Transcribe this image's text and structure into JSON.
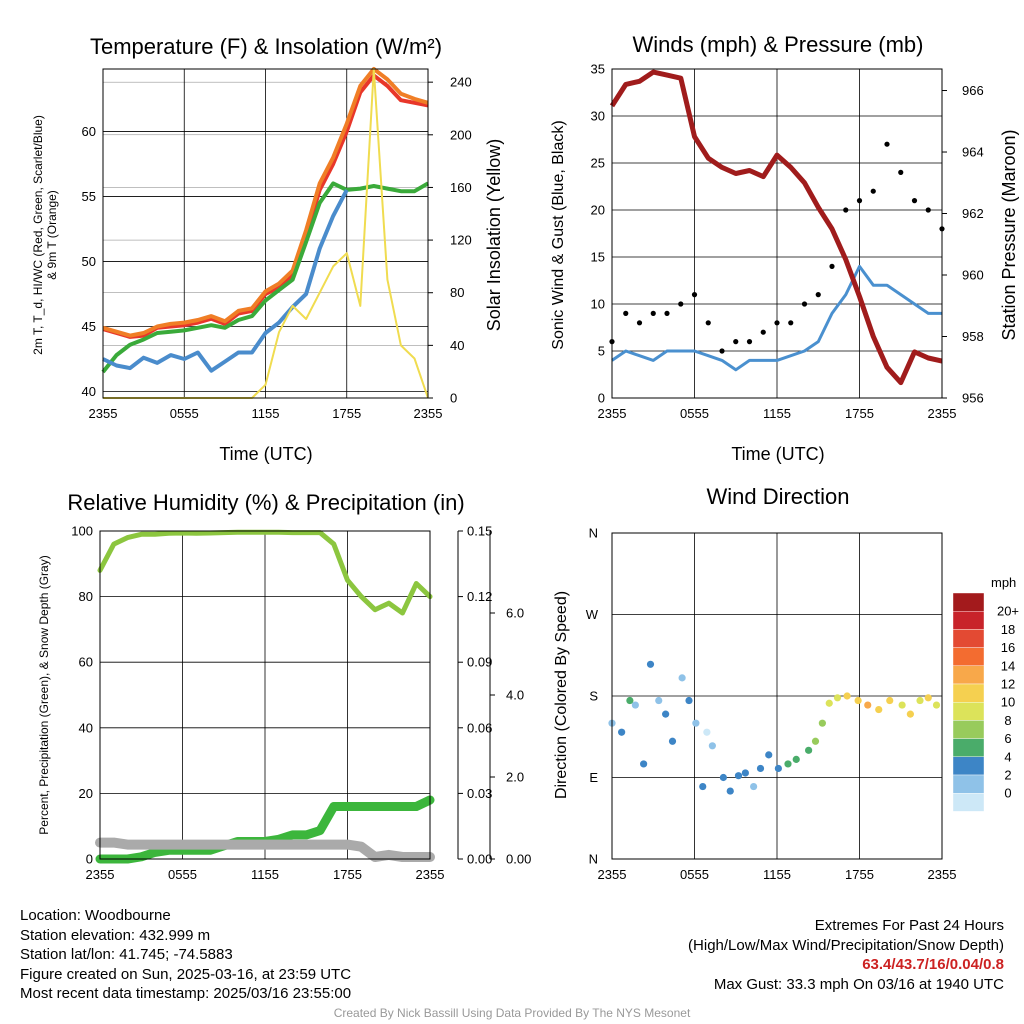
{
  "chart_data": [
    {
      "type": "line",
      "title": "Temperature (F) & Insolation (W/m²)",
      "xlabel": "Time (UTC)",
      "ylabel_lines": [
        "2m T, T_d, HI/WC (Red, Green, Scarlet/Blue)",
        "& 9m T (Orange)"
      ],
      "y2label": "Solar Insolation (Yellow)",
      "x_ticks": [
        "2355",
        "0555",
        "1155",
        "1755",
        "2355"
      ],
      "y_ticks": [
        40,
        45,
        50,
        55,
        60
      ],
      "ylim": [
        39.5,
        64.8
      ],
      "y2_ticks": [
        0,
        40,
        80,
        120,
        160,
        200,
        240
      ],
      "y2lim": [
        0,
        250
      ],
      "x_hours": [
        0,
        1,
        2,
        3,
        4,
        5,
        6,
        7,
        8,
        9,
        10,
        11,
        12,
        13,
        14,
        15,
        16,
        17,
        18,
        19,
        20,
        21,
        22,
        23,
        24
      ],
      "series": [
        {
          "role": "2m T",
          "color": "#e8372a",
          "values": [
            44.8,
            44.5,
            44.2,
            44.3,
            44.9,
            45.0,
            45.1,
            45.3,
            45.6,
            45.2,
            46.0,
            46.2,
            47.5,
            48.0,
            49.0,
            52.0,
            55.5,
            57.5,
            60.0,
            63.0,
            64.3,
            63.5,
            62.4,
            62.2,
            62.0
          ]
        },
        {
          "role": "9m T",
          "color": "#f07e26",
          "values": [
            44.9,
            44.6,
            44.3,
            44.5,
            45.0,
            45.2,
            45.3,
            45.5,
            45.8,
            45.4,
            46.2,
            46.4,
            47.7,
            48.3,
            49.3,
            52.4,
            56.0,
            58.0,
            60.6,
            63.5,
            64.8,
            64.0,
            62.9,
            62.5,
            62.2
          ]
        },
        {
          "role": "T_d",
          "color": "#3aaa3a",
          "values": [
            41.5,
            42.8,
            43.6,
            44.0,
            44.5,
            44.6,
            44.7,
            44.9,
            45.1,
            44.9,
            45.5,
            45.8,
            47.0,
            47.8,
            48.6,
            51.5,
            54.5,
            56.0,
            55.5,
            55.6,
            55.8,
            55.6,
            55.4,
            55.4,
            56.0
          ]
        },
        {
          "role": "HI/WC",
          "color": "#4a8ccc",
          "values": [
            42.5,
            42.0,
            41.8,
            42.6,
            42.2,
            42.8,
            42.5,
            43.0,
            41.6,
            42.3,
            43.0,
            43.0,
            44.5,
            45.3,
            46.5,
            47.5,
            51.0,
            53.5,
            55.5,
            null,
            null,
            null,
            null,
            null,
            null
          ]
        },
        {
          "role": "Solar Insolation",
          "axis": "right",
          "color": "#f0dc50",
          "values": [
            0,
            0,
            0,
            0,
            0,
            0,
            0,
            0,
            0,
            0,
            0,
            0,
            10,
            50,
            70,
            60,
            80,
            100,
            110,
            70,
            250,
            90,
            40,
            30,
            0
          ]
        }
      ]
    },
    {
      "type": "line",
      "title": "Winds (mph) & Pressure (mb)",
      "xlabel": "Time (UTC)",
      "ylabel": "Sonic Wind & Gust (Blue, Black)",
      "y2label": "Station Pressure (Maroon)",
      "x_ticks": [
        "2355",
        "0555",
        "1155",
        "1755",
        "2355"
      ],
      "y_ticks": [
        0,
        5,
        10,
        15,
        20,
        25,
        30,
        35
      ],
      "ylim": [
        0,
        35
      ],
      "y2_ticks": [
        956,
        958,
        960,
        962,
        964,
        966
      ],
      "y2lim": [
        956,
        966.7
      ],
      "x_hours": [
        0,
        1,
        2,
        3,
        4,
        5,
        6,
        7,
        8,
        9,
        10,
        11,
        12,
        13,
        14,
        15,
        16,
        17,
        18,
        19,
        20,
        21,
        22,
        23,
        24
      ],
      "series": [
        {
          "role": "Sonic Wind",
          "color": "#4a90cf",
          "values": [
            4,
            5,
            4.5,
            4,
            5,
            5,
            5,
            4.5,
            4,
            3,
            4,
            4,
            4,
            4.5,
            5,
            6,
            9,
            11,
            14,
            12,
            12,
            11,
            10,
            9,
            9
          ]
        },
        {
          "role": "Gust",
          "color": "#000000",
          "values": [
            6,
            9,
            8,
            9,
            9,
            10,
            11,
            8,
            5,
            6,
            6,
            7,
            8,
            8,
            10,
            11,
            14,
            20,
            21,
            22,
            27,
            24,
            21,
            20,
            18
          ]
        },
        {
          "role": "Station Pressure",
          "axis": "right",
          "color": "#a01c1c",
          "values": [
            965.5,
            966.2,
            966.3,
            966.6,
            966.5,
            966.4,
            964.5,
            963.8,
            963.5,
            963.3,
            963.4,
            963.2,
            963.9,
            963.5,
            963.0,
            962.2,
            961.5,
            960.5,
            959.3,
            958.0,
            957.0,
            956.5,
            957.5,
            957.3,
            957.2
          ]
        }
      ]
    },
    {
      "type": "line",
      "title": "Relative Humidity (%) & Precipitation (in)",
      "ylabel": "Percent, Precipitation (Green), & Snow Depth (Gray)",
      "x_ticks": [
        "2355",
        "0555",
        "1155",
        "1755",
        "2355"
      ],
      "y_ticks": [
        0,
        20,
        40,
        60,
        80,
        100
      ],
      "ylim": [
        0,
        100
      ],
      "precip_ticks": [
        "0.00",
        "0.03",
        "0.06",
        "0.09",
        "0.12",
        "0.15"
      ],
      "precip_lim": [
        0,
        0.15
      ],
      "snow_ticks": [
        "0.00",
        "2.0",
        "4.0",
        "6.0"
      ],
      "snow_lim": [
        0,
        8.0
      ],
      "x_hours": [
        0,
        1,
        2,
        3,
        4,
        5,
        6,
        7,
        8,
        9,
        10,
        11,
        12,
        13,
        14,
        15,
        16,
        17,
        18,
        19,
        20,
        21,
        22,
        23,
        24
      ],
      "series": [
        {
          "role": "Relative Humidity",
          "color": "#8cc63f",
          "values": [
            88,
            96,
            98,
            99,
            99,
            99.3,
            99.4,
            99.3,
            99.4,
            99.5,
            99.6,
            99.6,
            99.6,
            99.6,
            99.5,
            99.5,
            99.5,
            96,
            85,
            80,
            76,
            78,
            75,
            84,
            80
          ]
        },
        {
          "role": "Precipitation",
          "axis": "precip",
          "color": "#3cb63c",
          "values": [
            0,
            0,
            0,
            0.001,
            0.003,
            0.004,
            0.004,
            0.004,
            0.004,
            0.006,
            0.008,
            0.008,
            0.008,
            0.009,
            0.011,
            0.011,
            0.013,
            0.024,
            0.024,
            0.024,
            0.024,
            0.024,
            0.024,
            0.024,
            0.027
          ]
        },
        {
          "role": "Snow Depth",
          "axis": "snow",
          "color": "#aaaaaa",
          "values": [
            0.4,
            0.4,
            0.35,
            0.35,
            0.35,
            0.35,
            0.35,
            0.35,
            0.35,
            0.35,
            0.35,
            0.35,
            0.35,
            0.35,
            0.35,
            0.35,
            0.35,
            0.35,
            0.35,
            0.3,
            0.05,
            0.1,
            0.05,
            0.05,
            0.05
          ]
        }
      ]
    },
    {
      "type": "scatter",
      "title": "Wind Direction",
      "ylabel": "Direction (Colored By Speed)",
      "x_ticks": [
        "2355",
        "0555",
        "1155",
        "1755",
        "2355"
      ],
      "y_ticks": [
        "N",
        "E",
        "S",
        "W",
        "N"
      ],
      "ylim_degrees": [
        0,
        360
      ],
      "points": [
        [
          0,
          150
        ],
        [
          0.7,
          140
        ],
        [
          1.3,
          175
        ],
        [
          1.7,
          170
        ],
        [
          2.3,
          105
        ],
        [
          2.8,
          215
        ],
        [
          3.4,
          175
        ],
        [
          3.9,
          160
        ],
        [
          4.4,
          130
        ],
        [
          5.1,
          200
        ],
        [
          5.6,
          175
        ],
        [
          6.1,
          150
        ],
        [
          6.6,
          80
        ],
        [
          6.9,
          140
        ],
        [
          7.3,
          125
        ],
        [
          8.1,
          90
        ],
        [
          8.6,
          75
        ],
        [
          9.2,
          92
        ],
        [
          9.7,
          95
        ],
        [
          10.3,
          80
        ],
        [
          10.8,
          100
        ],
        [
          11.4,
          115
        ],
        [
          12.1,
          100
        ],
        [
          12.8,
          105
        ],
        [
          13.4,
          110
        ],
        [
          14.3,
          120
        ],
        [
          14.8,
          130
        ],
        [
          15.3,
          150
        ],
        [
          15.8,
          172
        ],
        [
          16.4,
          178
        ],
        [
          17.1,
          180
        ],
        [
          17.9,
          175
        ],
        [
          18.6,
          170
        ],
        [
          19.4,
          165
        ],
        [
          20.2,
          175
        ],
        [
          21.1,
          170
        ],
        [
          21.7,
          160
        ],
        [
          22.4,
          175
        ],
        [
          23.0,
          178
        ],
        [
          23.6,
          170
        ]
      ],
      "speeds": [
        3,
        4,
        7,
        3,
        4,
        5,
        3,
        4,
        4,
        2,
        4,
        3,
        4,
        1,
        3,
        4,
        4,
        5,
        4,
        3,
        4,
        4,
        4,
        7,
        6,
        7,
        8,
        8,
        11,
        10,
        13,
        13,
        15,
        12,
        13,
        10,
        13,
        11,
        12,
        10
      ],
      "legend": {
        "unit": "mph",
        "labels": [
          "20+",
          "18",
          "16",
          "14",
          "12",
          "10",
          "8",
          "6",
          "4",
          "2",
          "0"
        ],
        "colors": [
          "#a31a1c",
          "#c8232a",
          "#e34a33",
          "#f36c30",
          "#f8a84a",
          "#f5d050",
          "#dce35a",
          "#98cb5c",
          "#4aac6a",
          "#3d85c6",
          "#8fc2e8",
          "#cde8f7"
        ]
      }
    }
  ],
  "info": {
    "location": "Location: Woodbourne",
    "elevation": "Station elevation: 432.999 m",
    "latlon": "Station lat/lon: 41.745; -74.5883",
    "created": "Figure created on Sun, 2025-03-16, at 23:59 UTC",
    "recent": "Most recent data timestamp: 2025/03/16 23:55:00"
  },
  "extremes": {
    "title": "Extremes For Past 24 Hours",
    "subtitle": "(High/Low/Max Wind/Precipitation/Snow Depth)",
    "values": "63.4/43.7/16/0.04/0.8",
    "gust": "Max Gust: 33.3 mph On 03/16 at 1940 UTC"
  },
  "credit": "Created By Nick Bassill Using Data Provided By The NYS Mesonet"
}
